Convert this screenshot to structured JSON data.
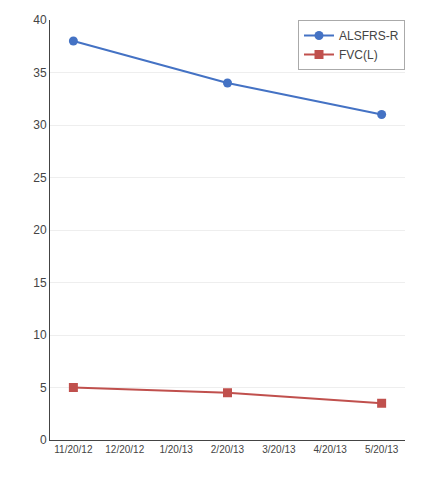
{
  "chart_data": {
    "type": "line",
    "categories": [
      "11/20/12",
      "12/20/12",
      "1/20/13",
      "2/20/13",
      "3/20/13",
      "4/20/13",
      "5/20/13"
    ],
    "series": [
      {
        "name": "ALSFRS-R",
        "color": "#4472C4",
        "marker": "circle",
        "x": [
          "11/20/12",
          "2/20/13",
          "5/20/13"
        ],
        "values": [
          38,
          34,
          31
        ]
      },
      {
        "name": "FVC(L)",
        "color": "#C0504D",
        "marker": "square",
        "x": [
          "11/20/12",
          "2/20/13",
          "5/20/13"
        ],
        "values": [
          5.0,
          4.5,
          3.5
        ]
      }
    ],
    "ylim": [
      0,
      40
    ],
    "yticks": [
      0,
      5,
      10,
      15,
      20,
      25,
      30,
      35,
      40
    ],
    "grid": true,
    "legend": "upper right"
  }
}
